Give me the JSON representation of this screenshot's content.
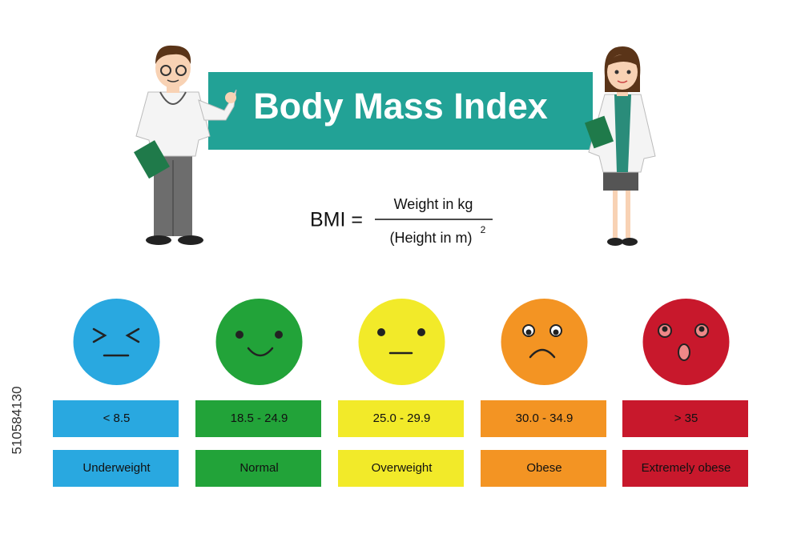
{
  "header": {
    "title": "Body Mass Index"
  },
  "formula": {
    "lhs": "BMI =",
    "numerator": "Weight in kg",
    "denominator": "(Height in m)",
    "exponent": "2"
  },
  "categories": [
    {
      "range": "<   8.5",
      "label": "Underweight",
      "color": "#29a8e0"
    },
    {
      "range": "18.5 - 24.9",
      "label": "Normal",
      "color": "#22a339"
    },
    {
      "range": "25.0 - 29.9",
      "label": "Overweight",
      "color": "#f2ea29"
    },
    {
      "range": "30.0 - 34.9",
      "label": "Obese",
      "color": "#f39423"
    },
    {
      "range": "> 35",
      "label": "Extremely obese",
      "color": "#c8182c"
    }
  ],
  "watermark_id": "510584130"
}
